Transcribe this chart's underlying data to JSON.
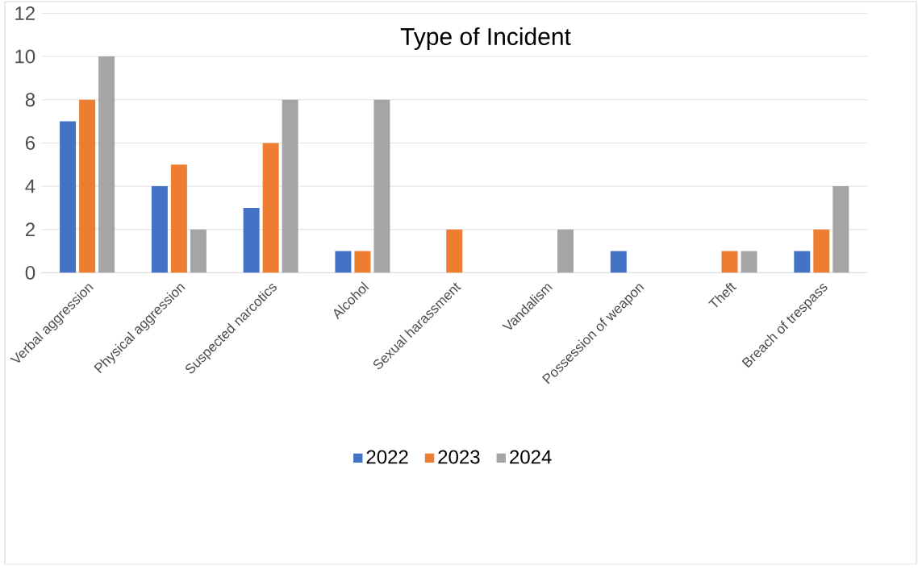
{
  "chart_data": {
    "type": "bar",
    "title": "Type of Incident",
    "categories": [
      "Verbal aggression",
      "Physical aggression",
      "Suspected narcotics",
      "Alcohol",
      "Sexual harassment",
      "Vandalism",
      "Possession of weapon",
      "Theft",
      "Breach of trespass"
    ],
    "series": [
      {
        "name": "2022",
        "color": "#4472c4",
        "values": [
          7,
          4,
          3,
          1,
          0,
          0,
          1,
          0,
          1
        ]
      },
      {
        "name": "2023",
        "color": "#ed7d31",
        "values": [
          8,
          5,
          6,
          1,
          2,
          0,
          0,
          1,
          2
        ]
      },
      {
        "name": "2024",
        "color": "#a5a5a5",
        "values": [
          10,
          2,
          8,
          8,
          0,
          2,
          0,
          1,
          4
        ]
      }
    ],
    "ylim": [
      0,
      12
    ],
    "yticks": [
      0,
      2,
      4,
      6,
      8,
      10,
      12
    ],
    "grid": "y",
    "legend": "bottom"
  }
}
